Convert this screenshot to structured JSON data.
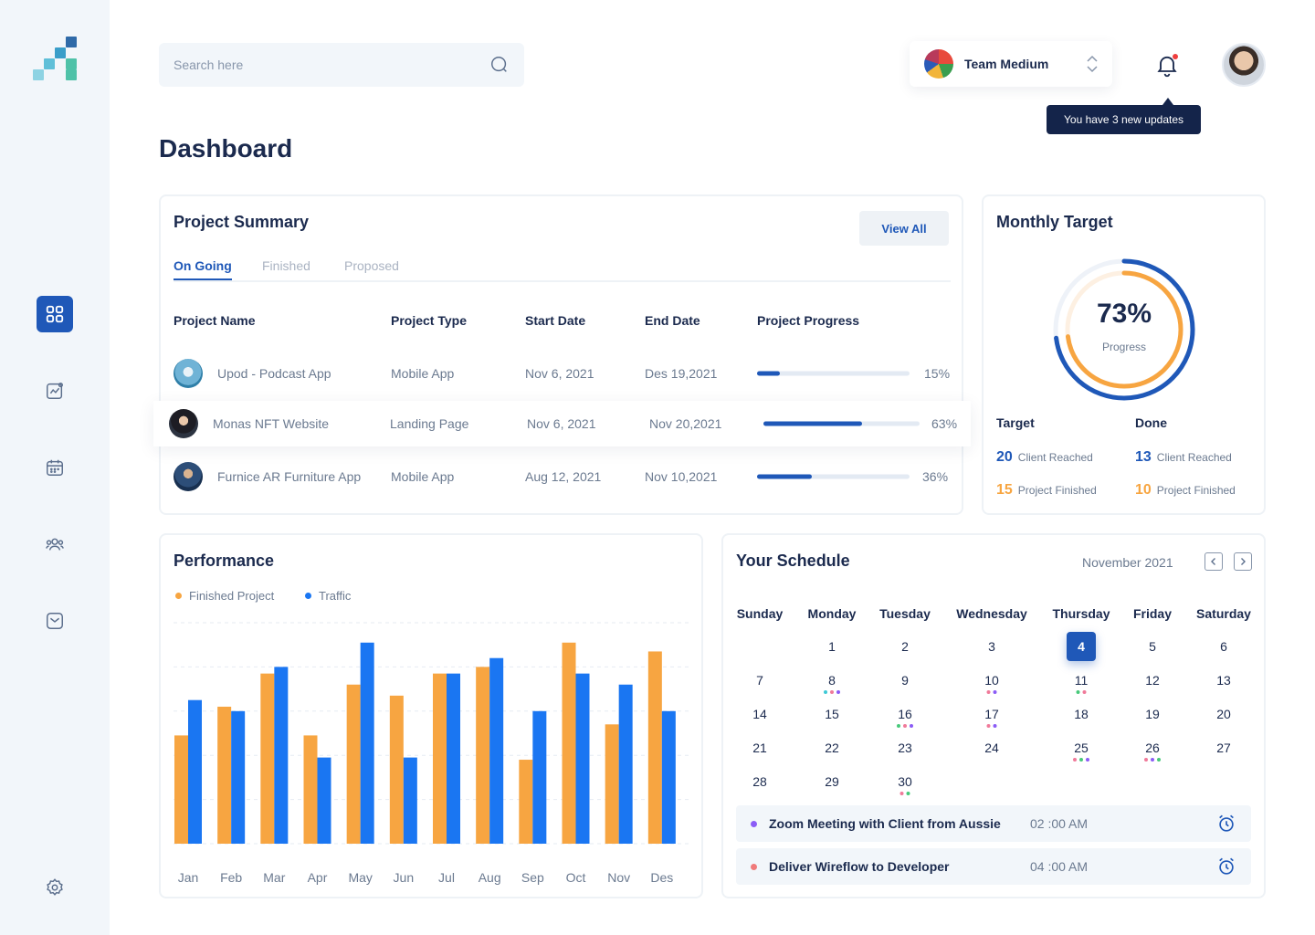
{
  "search": {
    "placeholder": "Search here"
  },
  "team": {
    "name": "Team Medium"
  },
  "notifications": {
    "tooltip": "You have 3 new updates"
  },
  "page": {
    "title": "Dashboard"
  },
  "project_summary": {
    "title": "Project Summary",
    "view_all": "View All",
    "tabs": [
      "On Going",
      "Finished",
      "Proposed"
    ],
    "columns": [
      "Project Name",
      "Project Type",
      "Start Date",
      "End Date",
      "Project Progress"
    ],
    "rows": [
      {
        "name": "Upod - Podcast App",
        "type": "Mobile App",
        "start": "Nov 6, 2021",
        "end": "Des 19,2021",
        "progress": 15,
        "progress_label": "15%"
      },
      {
        "name": "Monas NFT Website",
        "type": "Landing Page",
        "start": "Nov 6, 2021",
        "end": "Nov 20,2021",
        "progress": 63,
        "progress_label": "63%"
      },
      {
        "name": "Furnice AR  Furniture App",
        "type": "Mobile App",
        "start": "Aug 12, 2021",
        "end": "Nov 10,2021",
        "progress": 36,
        "progress_label": "36%"
      }
    ]
  },
  "monthly_target": {
    "title": "Monthly Target",
    "percent": "73%",
    "percent_value": 73,
    "percent_label": "Progress",
    "target": {
      "heading": "Target",
      "client_value": "20",
      "client_label": "Client Reached",
      "project_value": "15",
      "project_label": "Project Finished"
    },
    "done": {
      "heading": "Done",
      "client_value": "13",
      "client_label": "Client Reached",
      "project_value": "10",
      "project_label": "Project Finished"
    }
  },
  "performance": {
    "title": "Performance"
  },
  "chart_data": {
    "type": "bar",
    "categories": [
      "Jan",
      "Feb",
      "Mar",
      "Apr",
      "May",
      "Jun",
      "Jul",
      "Aug",
      "Sep",
      "Oct",
      "Nov",
      "Des"
    ],
    "series": [
      {
        "name": "Finished Project",
        "color": "#f7a541",
        "values": [
          49,
          62,
          77,
          49,
          72,
          67,
          77,
          80,
          38,
          91,
          54,
          87
        ]
      },
      {
        "name": "Traffic",
        "color": "#1a76f2",
        "values": [
          65,
          60,
          80,
          39,
          91,
          39,
          77,
          84,
          60,
          77,
          72,
          60
        ]
      }
    ],
    "ylim": [
      0,
      100
    ],
    "grid": true,
    "legend": "top-left"
  },
  "schedule": {
    "title": "Your Schedule",
    "month": "November 2021",
    "weekdays": [
      "Sunday",
      "Monday",
      "Tuesday",
      "Wednesday",
      "Thursday",
      "Friday",
      "Saturday"
    ],
    "selected_day": "4",
    "days": [
      {
        "d": "1",
        "col": 1,
        "row": 0
      },
      {
        "d": "2",
        "col": 2,
        "row": 0
      },
      {
        "d": "3",
        "col": 3,
        "row": 0
      },
      {
        "d": "4",
        "col": 4,
        "row": 0
      },
      {
        "d": "5",
        "col": 5,
        "row": 0
      },
      {
        "d": "6",
        "col": 6,
        "row": 0
      },
      {
        "d": "7",
        "col": 0,
        "row": 1
      },
      {
        "d": "8",
        "col": 1,
        "row": 1,
        "dots": [
          "#3ec9d6",
          "#f07a9a",
          "#8b5cf6"
        ]
      },
      {
        "d": "9",
        "col": 2,
        "row": 1
      },
      {
        "d": "10",
        "col": 3,
        "row": 1,
        "dots": [
          "#f07a9a",
          "#8b5cf6"
        ]
      },
      {
        "d": "11",
        "col": 4,
        "row": 1,
        "dots": [
          "#47c97a",
          "#f07a9a"
        ]
      },
      {
        "d": "12",
        "col": 5,
        "row": 1
      },
      {
        "d": "13",
        "col": 6,
        "row": 1
      },
      {
        "d": "14",
        "col": 0,
        "row": 2
      },
      {
        "d": "15",
        "col": 1,
        "row": 2
      },
      {
        "d": "16",
        "col": 2,
        "row": 2,
        "dots": [
          "#47c97a",
          "#f07a9a",
          "#8b5cf6"
        ]
      },
      {
        "d": "17",
        "col": 3,
        "row": 2,
        "dots": [
          "#f07a9a",
          "#8b5cf6"
        ]
      },
      {
        "d": "18",
        "col": 4,
        "row": 2
      },
      {
        "d": "19",
        "col": 5,
        "row": 2
      },
      {
        "d": "20",
        "col": 6,
        "row": 2
      },
      {
        "d": "21",
        "col": 0,
        "row": 3
      },
      {
        "d": "22",
        "col": 1,
        "row": 3
      },
      {
        "d": "23",
        "col": 2,
        "row": 3
      },
      {
        "d": "24",
        "col": 3,
        "row": 3
      },
      {
        "d": "25",
        "col": 4,
        "row": 3,
        "dots": [
          "#f07a9a",
          "#47c97a",
          "#8b5cf6"
        ]
      },
      {
        "d": "26",
        "col": 5,
        "row": 3,
        "dots": [
          "#f07a9a",
          "#8b5cf6",
          "#47c97a"
        ]
      },
      {
        "d": "27",
        "col": 6,
        "row": 3
      },
      {
        "d": "28",
        "col": 0,
        "row": 4
      },
      {
        "d": "29",
        "col": 1,
        "row": 4
      },
      {
        "d": "30",
        "col": 2,
        "row": 4,
        "dots": [
          "#f07a9a",
          "#47c97a"
        ]
      }
    ],
    "events": [
      {
        "title": "Zoom Meeting with Client from Aussie",
        "time": "02 :00 AM",
        "color": "#8b5cf6"
      },
      {
        "title": "Deliver Wireflow to Developer",
        "time": "04 :00 AM",
        "color": "#f07a7a"
      }
    ]
  },
  "colors": {
    "primary": "#1f58b8",
    "orange": "#f7a541",
    "blue": "#1a76f2",
    "navy": "#14244a"
  }
}
